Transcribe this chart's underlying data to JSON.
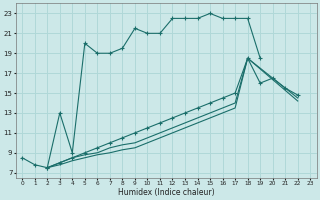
{
  "xlabel": "Humidex (Indice chaleur)",
  "xlim": [
    -0.5,
    23.5
  ],
  "ylim": [
    6.5,
    24
  ],
  "yticks": [
    7,
    9,
    11,
    13,
    15,
    17,
    19,
    21,
    23
  ],
  "xticks": [
    0,
    1,
    2,
    3,
    4,
    5,
    6,
    7,
    8,
    9,
    10,
    11,
    12,
    13,
    14,
    15,
    16,
    17,
    18,
    19,
    20,
    21,
    22,
    23
  ],
  "bg_color": "#cce8e8",
  "line_color": "#1a6e6a",
  "grid_color": "#b0d8d8",
  "s1_x": [
    0,
    1,
    2,
    3,
    4,
    5,
    6,
    7,
    8,
    9,
    10,
    11,
    12,
    13,
    14,
    15,
    16,
    17,
    18,
    19
  ],
  "s1_y": [
    8.5,
    7.8,
    7.5,
    13.0,
    9.0,
    20.0,
    19.0,
    19.0,
    19.5,
    21.5,
    21.0,
    21.0,
    22.5,
    22.5,
    22.5,
    23.0,
    22.5,
    22.5,
    22.5,
    18.5
  ],
  "s2_x": [
    2,
    3,
    4,
    5,
    6,
    7,
    8,
    9,
    10,
    11,
    12,
    13,
    14,
    15,
    16,
    17,
    18,
    19,
    20,
    21,
    22
  ],
  "s2_y": [
    7.5,
    8.0,
    8.5,
    9.0,
    9.5,
    10.0,
    10.5,
    11.0,
    11.5,
    12.0,
    12.5,
    13.0,
    13.5,
    14.0,
    14.5,
    15.0,
    18.5,
    16.0,
    16.5,
    15.5,
    14.8
  ],
  "s3_x": [
    2,
    3,
    4,
    5,
    6,
    7,
    8,
    9,
    10,
    11,
    12,
    13,
    14,
    15,
    16,
    17,
    18,
    22
  ],
  "s3_y": [
    7.5,
    8.0,
    8.5,
    8.8,
    9.0,
    9.5,
    9.8,
    10.0,
    10.5,
    11.0,
    11.5,
    12.0,
    12.5,
    13.0,
    13.5,
    14.0,
    18.5,
    14.5
  ],
  "s4_x": [
    2,
    3,
    4,
    5,
    6,
    7,
    8,
    9,
    10,
    11,
    12,
    13,
    14,
    15,
    16,
    17,
    18,
    22
  ],
  "s4_y": [
    7.5,
    7.8,
    8.2,
    8.5,
    8.8,
    9.0,
    9.3,
    9.5,
    10.0,
    10.5,
    11.0,
    11.5,
    12.0,
    12.5,
    13.0,
    13.5,
    18.5,
    14.2
  ]
}
